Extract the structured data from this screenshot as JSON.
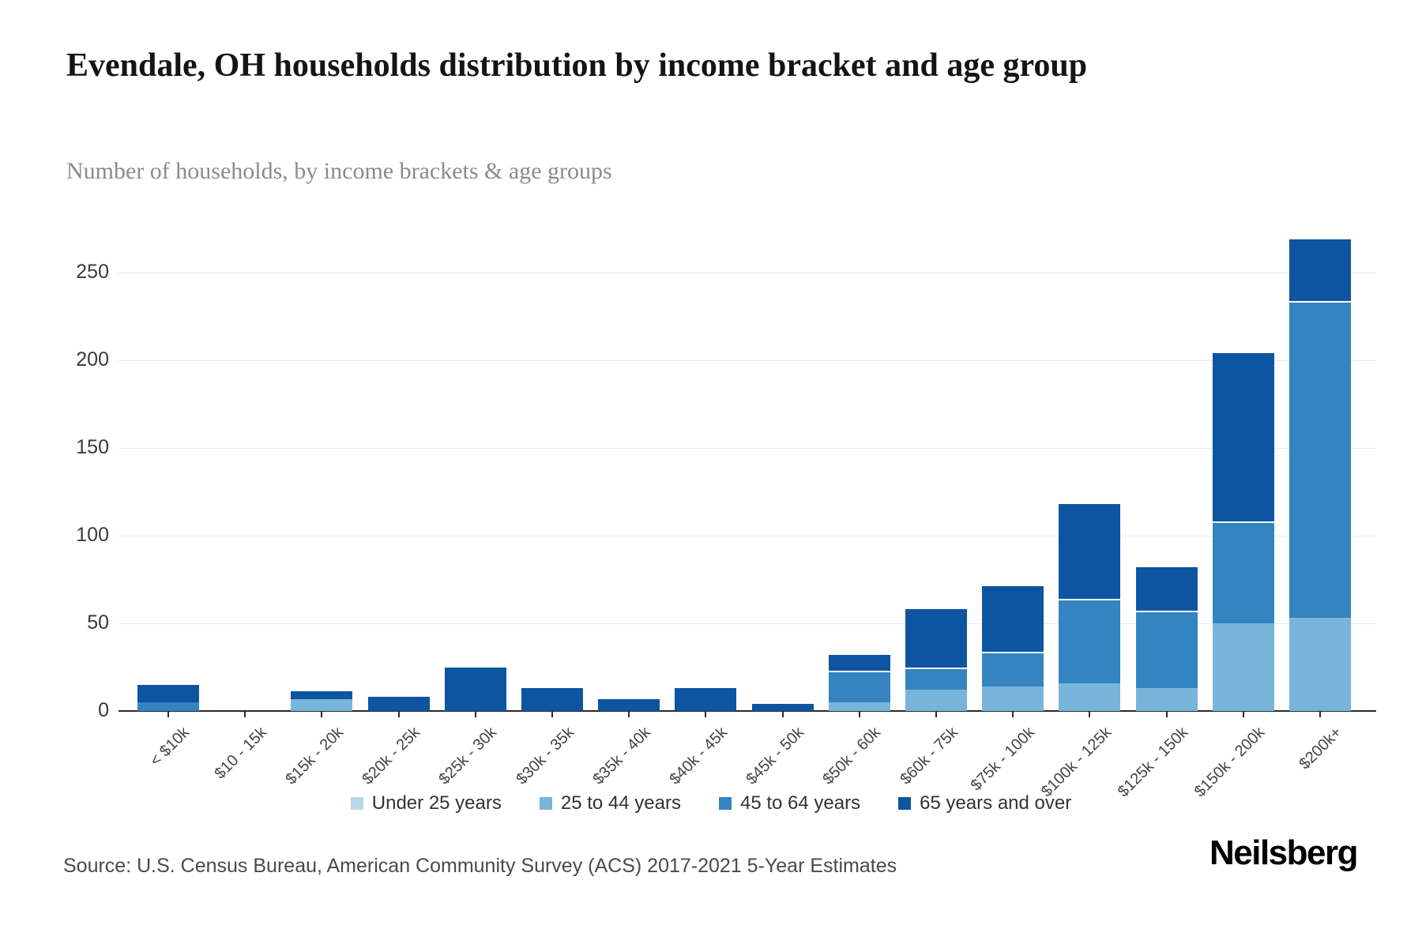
{
  "header": {
    "title": "Evendale, OH households distribution by income bracket and age group",
    "subtitle": "Number of households, by income brackets & age groups"
  },
  "footer": {
    "source": "Source: U.S. Census Bureau, American Community Survey (ACS) 2017-2021 5-Year Estimates",
    "brand": "Neilsberg"
  },
  "chart_data": {
    "type": "bar",
    "stacked": true,
    "title": "Evendale, OH households distribution by income bracket and age group",
    "subtitle": "Number of households, by income brackets & age groups",
    "categories": [
      "< $10k",
      "$10 - 15k",
      "$15k - 20k",
      "$20k - 25k",
      "$25k - 30k",
      "$30k - 35k",
      "$35k - 40k",
      "$40k - 45k",
      "$45k - 50k",
      "$50k - 60k",
      "$60k - 75k",
      "$75k - 100k",
      "$100k - 125k",
      "$125k - 150k",
      "$150k - 200k",
      "$200k+"
    ],
    "series": [
      {
        "name": "Under 25 years",
        "color": "#b9d7ea",
        "values": [
          0,
          0,
          0,
          0,
          0,
          0,
          0,
          0,
          0,
          0,
          0,
          0,
          0,
          0,
          0,
          0
        ]
      },
      {
        "name": "25 to 44 years",
        "color": "#79b5db",
        "values": [
          0,
          0,
          7,
          0,
          0,
          0,
          0,
          0,
          0,
          5,
          12,
          14,
          16,
          13,
          50,
          53
        ]
      },
      {
        "name": "45 to 64 years",
        "color": "#3384c1",
        "values": [
          5,
          0,
          0,
          0,
          0,
          0,
          0,
          0,
          0,
          18,
          13,
          20,
          48,
          44,
          58,
          181
        ]
      },
      {
        "name": "65 years and over",
        "color": "#0d55a1",
        "values": [
          11,
          0,
          5,
          8,
          25,
          13,
          7,
          13,
          4,
          10,
          34,
          38,
          55,
          26,
          97,
          36
        ]
      }
    ],
    "totals": [
      16,
      0,
      12,
      8,
      25,
      13,
      7,
      13,
      4,
      33,
      59,
      72,
      119,
      83,
      205,
      270
    ],
    "xlabel": "",
    "ylabel": "",
    "yticks": [
      0,
      50,
      100,
      150,
      200,
      250
    ],
    "ylim": [
      0,
      275
    ],
    "grid": "horizontal",
    "legend_position": "bottom"
  }
}
